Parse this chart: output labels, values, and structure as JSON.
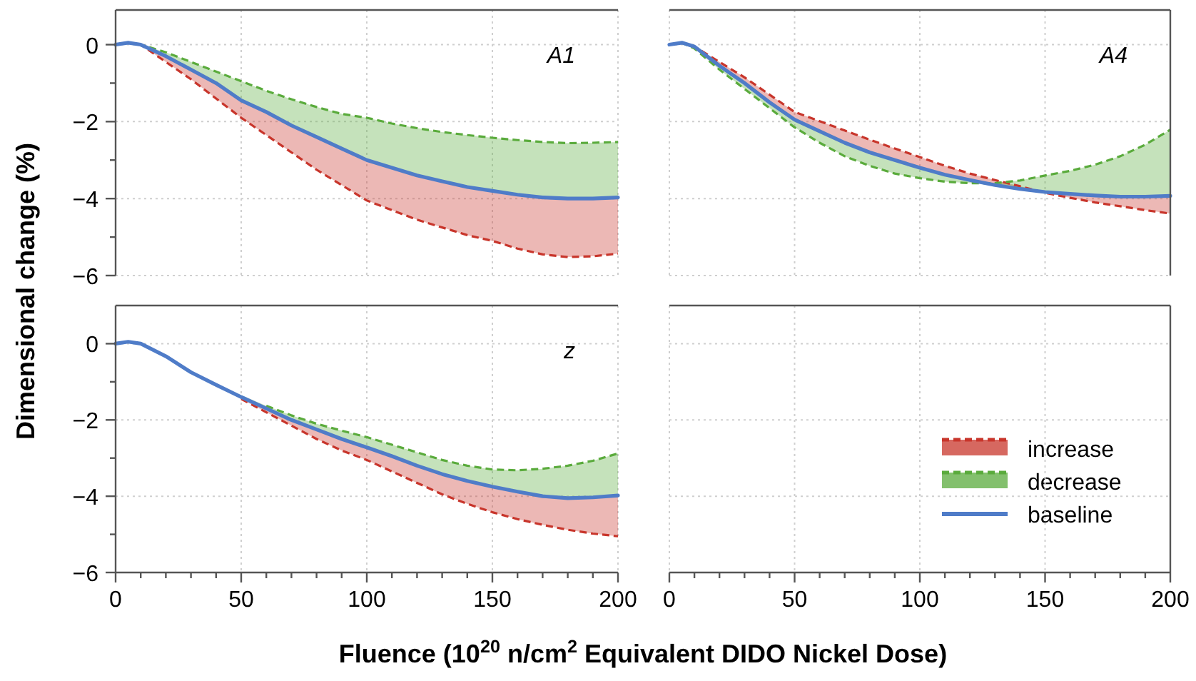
{
  "chart_data": [
    {
      "type": "line",
      "ylabel": "Dimensional change (%)",
      "annotations": [
        "A1"
      ],
      "xlim": [
        0,
        200
      ],
      "ylim": [
        -6,
        0.9
      ],
      "x": [
        0,
        5,
        10,
        20,
        30,
        40,
        50,
        60,
        70,
        80,
        90,
        100,
        110,
        120,
        130,
        140,
        150,
        160,
        170,
        180,
        190,
        200
      ],
      "xticks": [
        0,
        50,
        100,
        150,
        200
      ],
      "yticks": [
        -6,
        {
          "value": -5,
          "label": null
        },
        -4,
        {
          "value": -3,
          "label": null
        },
        -2,
        {
          "value": -1,
          "label": null
        },
        0
      ],
      "tick_labels": "y",
      "grid": true,
      "series": [
        {
          "color": "#c8352b",
          "line_style": "dashed",
          "values": [
            0,
            0.05,
            0,
            -0.45,
            -0.9,
            -1.4,
            -1.9,
            -2.35,
            -2.8,
            -3.25,
            -3.65,
            -4.05,
            -4.3,
            -4.55,
            -4.75,
            -4.95,
            -5.1,
            -5.3,
            -5.45,
            -5.52,
            -5.5,
            -5.43
          ],
          "lower": [
            0,
            0.05,
            0,
            -0.45,
            -0.9,
            -1.4,
            -1.9,
            -2.35,
            -2.8,
            -3.25,
            -3.65,
            -4.05,
            -4.3,
            -4.55,
            -4.75,
            -4.95,
            -5.1,
            -5.3,
            -5.45,
            -5.52,
            -5.5,
            -5.43
          ],
          "upper": [
            0,
            0.05,
            0,
            -0.3,
            -0.65,
            -1.0,
            -1.45,
            -1.75,
            -2.1,
            -2.4,
            -2.7,
            -3.0,
            -3.2,
            -3.4,
            -3.55,
            -3.7,
            -3.8,
            -3.9,
            -3.97,
            -4.0,
            -4.0,
            -3.97
          ]
        },
        {
          "color": "#5aab3c",
          "line_style": "dashed",
          "values": [
            0,
            0.05,
            0,
            -0.2,
            -0.45,
            -0.7,
            -0.95,
            -1.2,
            -1.42,
            -1.62,
            -1.8,
            -1.9,
            -2.05,
            -2.17,
            -2.27,
            -2.35,
            -2.42,
            -2.48,
            -2.53,
            -2.56,
            -2.55,
            -2.53
          ],
          "lower": [
            0,
            0.05,
            0,
            -0.3,
            -0.65,
            -1.0,
            -1.45,
            -1.75,
            -2.1,
            -2.4,
            -2.7,
            -3.0,
            -3.2,
            -3.4,
            -3.55,
            -3.7,
            -3.8,
            -3.9,
            -3.97,
            -4.0,
            -4.0,
            -3.97
          ],
          "upper": [
            0,
            0.05,
            0,
            -0.2,
            -0.45,
            -0.7,
            -0.95,
            -1.2,
            -1.42,
            -1.62,
            -1.8,
            -1.9,
            -2.05,
            -2.17,
            -2.27,
            -2.35,
            -2.42,
            -2.48,
            -2.53,
            -2.56,
            -2.55,
            -2.53
          ]
        },
        {
          "color": "#4f7cc8",
          "line_style": "solid",
          "values": [
            0,
            0.05,
            0,
            -0.3,
            -0.65,
            -1.0,
            -1.45,
            -1.75,
            -2.1,
            -2.4,
            -2.7,
            -3.0,
            -3.2,
            -3.4,
            -3.55,
            -3.7,
            -3.8,
            -3.9,
            -3.97,
            -4.0,
            -4.0,
            -3.97
          ]
        }
      ]
    },
    {
      "type": "line",
      "annotations": [
        "A4"
      ],
      "xlim": [
        0,
        200
      ],
      "ylim": [
        -6,
        0.9
      ],
      "x": [
        0,
        5,
        10,
        20,
        30,
        40,
        50,
        60,
        70,
        80,
        90,
        100,
        110,
        120,
        130,
        140,
        150,
        160,
        170,
        180,
        190,
        200
      ],
      "xticks": [
        0,
        50,
        100,
        150,
        200
      ],
      "yticks": [
        -6,
        -4,
        -2,
        0
      ],
      "tick_labels": false,
      "grid": true,
      "series": [
        {
          "color": "#c8352b",
          "line_style": "dashed",
          "values": [
            0,
            0.05,
            -0.05,
            -0.45,
            -0.85,
            -1.3,
            -1.75,
            -1.99,
            -2.23,
            -2.47,
            -2.7,
            -2.92,
            -3.15,
            -3.35,
            -3.52,
            -3.68,
            -3.85,
            -3.98,
            -4.1,
            -4.2,
            -4.3,
            -4.39
          ],
          "lower": [
            0,
            0.05,
            -0.05,
            -0.55,
            -1.0,
            -1.5,
            -1.95,
            -2.25,
            -2.55,
            -2.8,
            -3.0,
            -3.2,
            -3.38,
            -3.52,
            -3.65,
            -3.75,
            -3.85,
            -3.98,
            -4.1,
            -4.2,
            -4.3,
            -4.39
          ],
          "upper": [
            0,
            0.05,
            -0.05,
            -0.45,
            -0.85,
            -1.3,
            -1.75,
            -1.99,
            -2.23,
            -2.47,
            -2.7,
            -2.92,
            -3.15,
            -3.35,
            -3.52,
            -3.68,
            -3.83,
            -3.88,
            -3.92,
            -3.95,
            -3.95,
            -3.93
          ]
        },
        {
          "color": "#5aab3c",
          "line_style": "dashed",
          "values": [
            0,
            0.05,
            -0.1,
            -0.65,
            -1.15,
            -1.65,
            -2.15,
            -2.55,
            -2.9,
            -3.15,
            -3.35,
            -3.47,
            -3.56,
            -3.6,
            -3.6,
            -3.53,
            -3.4,
            -3.28,
            -3.12,
            -2.9,
            -2.6,
            -2.21
          ],
          "lower": [
            0,
            0.05,
            -0.1,
            -0.65,
            -1.15,
            -1.65,
            -2.15,
            -2.55,
            -2.9,
            -3.15,
            -3.35,
            -3.47,
            -3.56,
            -3.6,
            -3.65,
            -3.75,
            -3.83,
            -3.88,
            -3.92,
            -3.95,
            -3.95,
            -3.93
          ],
          "upper": [
            0,
            0.05,
            -0.05,
            -0.55,
            -1.0,
            -1.5,
            -1.95,
            -2.25,
            -2.55,
            -2.8,
            -3.0,
            -3.2,
            -3.38,
            -3.52,
            -3.6,
            -3.53,
            -3.4,
            -3.28,
            -3.12,
            -2.9,
            -2.6,
            -2.21
          ]
        },
        {
          "color": "#4f7cc8",
          "line_style": "solid",
          "values": [
            0,
            0.05,
            -0.05,
            -0.55,
            -1.0,
            -1.5,
            -1.95,
            -2.25,
            -2.55,
            -2.8,
            -3.0,
            -3.2,
            -3.38,
            -3.52,
            -3.65,
            -3.75,
            -3.83,
            -3.88,
            -3.92,
            -3.95,
            -3.95,
            -3.93
          ]
        }
      ]
    },
    {
      "type": "line",
      "xlabel": "Fluence (10$^{20}$ n/cm$^{2}$ Equivalent DIDO Nickel Dose)",
      "annotations": [
        "z"
      ],
      "xlim": [
        0,
        200
      ],
      "ylim": [
        -6,
        1
      ],
      "x": [
        0,
        5,
        10,
        20,
        30,
        40,
        50,
        60,
        70,
        80,
        90,
        100,
        110,
        120,
        130,
        140,
        150,
        160,
        170,
        180,
        190,
        200
      ],
      "xticks": [
        0,
        {
          "value": 10,
          "label": null
        },
        {
          "value": 20,
          "label": null
        },
        {
          "value": 30,
          "label": null
        },
        {
          "value": 40,
          "label": null
        },
        50,
        {
          "value": 60,
          "label": null
        },
        {
          "value": 70,
          "label": null
        },
        {
          "value": 80,
          "label": null
        },
        {
          "value": 90,
          "label": null
        },
        100,
        {
          "value": 110,
          "label": null
        },
        {
          "value": 120,
          "label": null
        },
        {
          "value": 130,
          "label": null
        },
        {
          "value": 140,
          "label": null
        },
        150,
        {
          "value": 160,
          "label": null
        },
        {
          "value": 170,
          "label": null
        },
        {
          "value": 180,
          "label": null
        },
        {
          "value": 190,
          "label": null
        },
        200
      ],
      "yticks": [
        -6,
        {
          "value": -5,
          "label": null
        },
        -4,
        {
          "value": -3,
          "label": null
        },
        -2,
        {
          "value": -1,
          "label": null
        },
        0
      ],
      "grid": true,
      "legend": "right",
      "series": [
        {
          "name": "increase",
          "color": "#c8352b",
          "line_style": "dashed",
          "values": [
            null,
            null,
            null,
            null,
            null,
            null,
            -1.45,
            -1.8,
            -2.15,
            -2.5,
            -2.8,
            -3.05,
            -3.35,
            -3.65,
            -3.95,
            -4.2,
            -4.42,
            -4.6,
            -4.75,
            -4.88,
            -4.98,
            -5.05
          ],
          "lower": [
            0,
            0.05,
            0,
            -0.33,
            -0.75,
            -1.08,
            -1.45,
            -1.8,
            -2.15,
            -2.5,
            -2.8,
            -3.05,
            -3.35,
            -3.65,
            -3.95,
            -4.2,
            -4.42,
            -4.6,
            -4.75,
            -4.88,
            -4.98,
            -5.05
          ],
          "upper": [
            0,
            0.05,
            0,
            -0.33,
            -0.75,
            -1.08,
            -1.4,
            -1.7,
            -2.0,
            -2.25,
            -2.5,
            -2.72,
            -2.95,
            -3.2,
            -3.42,
            -3.6,
            -3.75,
            -3.88,
            -4.0,
            -4.05,
            -4.03,
            -3.98
          ]
        },
        {
          "name": "decrease",
          "color": "#5aab3c",
          "line_style": "dashed",
          "values": [
            null,
            null,
            null,
            null,
            null,
            null,
            null,
            -1.63,
            -1.88,
            -2.1,
            -2.28,
            -2.45,
            -2.65,
            -2.85,
            -3.05,
            -3.2,
            -3.3,
            -3.32,
            -3.28,
            -3.2,
            -3.07,
            -2.88
          ],
          "lower": [
            0,
            0.05,
            0,
            -0.33,
            -0.75,
            -1.08,
            -1.4,
            -1.7,
            -2.0,
            -2.25,
            -2.5,
            -2.72,
            -2.95,
            -3.2,
            -3.42,
            -3.6,
            -3.75,
            -3.88,
            -4.0,
            -4.05,
            -4.03,
            -3.98
          ],
          "upper": [
            0,
            0.05,
            0,
            -0.33,
            -0.72,
            -1.05,
            -1.35,
            -1.63,
            -1.88,
            -2.1,
            -2.28,
            -2.45,
            -2.65,
            -2.85,
            -3.05,
            -3.2,
            -3.3,
            -3.32,
            -3.28,
            -3.2,
            -3.07,
            -2.88
          ]
        },
        {
          "name": "baseline",
          "color": "#4f7cc8",
          "line_style": "solid",
          "values": [
            0,
            0.05,
            0,
            -0.33,
            -0.75,
            -1.08,
            -1.4,
            -1.7,
            -2.0,
            -2.25,
            -2.5,
            -2.72,
            -2.95,
            -3.2,
            -3.42,
            -3.6,
            -3.75,
            -3.88,
            -4.0,
            -4.05,
            -4.03,
            -3.98
          ]
        }
      ]
    },
    {
      "type": "line",
      "xlim": [
        0,
        200
      ],
      "ylim": [
        -6,
        1
      ],
      "xticks": [
        0,
        {
          "value": 10,
          "label": null
        },
        {
          "value": 20,
          "label": null
        },
        {
          "value": 30,
          "label": null
        },
        {
          "value": 40,
          "label": null
        },
        50,
        {
          "value": 60,
          "label": null
        },
        {
          "value": 70,
          "label": null
        },
        {
          "value": 80,
          "label": null
        },
        {
          "value": 90,
          "label": null
        },
        100,
        {
          "value": 110,
          "label": null
        },
        {
          "value": 120,
          "label": null
        },
        {
          "value": 130,
          "label": null
        },
        {
          "value": 140,
          "label": null
        },
        150,
        {
          "value": 160,
          "label": null
        },
        {
          "value": 170,
          "label": null
        },
        {
          "value": 180,
          "label": null
        },
        {
          "value": 190,
          "label": null
        },
        200
      ],
      "yticks": [
        -6,
        -4,
        -2,
        0
      ],
      "tick_labels": "x",
      "grid": true
    }
  ]
}
